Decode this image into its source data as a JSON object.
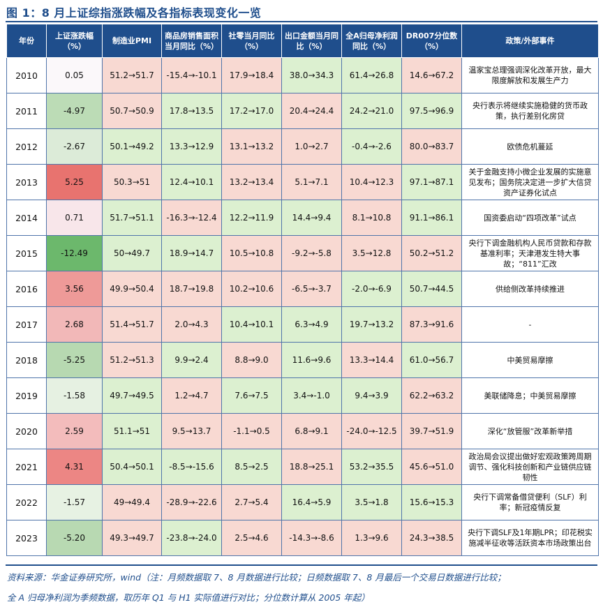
{
  "title": "图 1：8 月上证综指涨跌幅及各指标表现变化一览",
  "columns": [
    "年份",
    "上证涨跌幅（%）",
    "制造业PMI",
    "商品房销售面积当月同比（%）",
    "社零当月同比（%）",
    "出口金额当月同比（%）",
    "全A归母净利润同比（%）",
    "DR007分位数（%）",
    "政策/外部事件"
  ],
  "colors": {
    "header": "#1f4e8c",
    "pink": "#f8d9d2",
    "green": "#dcf0d0",
    "white": "#ffffff"
  },
  "rows": [
    {
      "year": "2010",
      "change": "0.05",
      "change_bg": "#fbf8fa",
      "pmi": "51.2→51.7",
      "pmi_bg": "pink",
      "house": "-15.4→-10.1",
      "house_bg": "pink",
      "retail": "17.9→18.4",
      "retail_bg": "pink",
      "export": "38.0→34.3",
      "export_bg": "green",
      "profit": "61.4→26.8",
      "profit_bg": "green",
      "dr007": "14.6→67.2",
      "dr007_bg": "pink",
      "event": "温家宝总理强调深化改革开放，最大限度解放和发展生产力"
    },
    {
      "year": "2011",
      "change": "-4.97",
      "change_bg": "#bcdcb6",
      "pmi": "50.7→50.9",
      "pmi_bg": "pink",
      "house": "17.8→13.5",
      "house_bg": "green",
      "retail": "17.2→17.0",
      "retail_bg": "green",
      "export": "20.4→24.4",
      "export_bg": "pink",
      "profit": "24.2→21.0",
      "profit_bg": "green",
      "dr007": "97.5→96.9",
      "dr007_bg": "green",
      "event": "央行表示将继续实施稳健的货币政策，执行差别化房贷"
    },
    {
      "year": "2012",
      "change": "-2.67",
      "change_bg": "#dcebd8",
      "pmi": "50.1→49.2",
      "pmi_bg": "green",
      "house": "13.3→12.9",
      "house_bg": "green",
      "retail": "13.1→13.2",
      "retail_bg": "pink",
      "export": "1.0→2.7",
      "export_bg": "pink",
      "profit": "-0.4→-2.6",
      "profit_bg": "green",
      "dr007": "80.0→83.7",
      "dr007_bg": "pink",
      "event": "欧债危机蔓延"
    },
    {
      "year": "2013",
      "change": "5.25",
      "change_bg": "#e8736f",
      "pmi": "50.3→51",
      "pmi_bg": "pink",
      "house": "12.4→10.1",
      "house_bg": "green",
      "retail": "13.2→13.4",
      "retail_bg": "pink",
      "export": "5.1→7.1",
      "export_bg": "pink",
      "profit": "10.4→12.3",
      "profit_bg": "pink",
      "dr007": "97.1→87.1",
      "dr007_bg": "green",
      "event": "关于金融支持小微企业发展的实施意见发布；国务院决定进一步扩大信贷资产证券化试点"
    },
    {
      "year": "2014",
      "change": "0.71",
      "change_bg": "#f8e6ea",
      "pmi": "51.7→51.1",
      "pmi_bg": "green",
      "house": "-16.3→-12.4",
      "house_bg": "pink",
      "retail": "12.2→11.9",
      "retail_bg": "green",
      "export": "14.4→9.4",
      "export_bg": "green",
      "profit": "8.1→10.8",
      "profit_bg": "pink",
      "dr007": "91.1→86.1",
      "dr007_bg": "green",
      "event": "国资委启动“四项改革”试点"
    },
    {
      "year": "2015",
      "change": "-12.49",
      "change_bg": "#6cb86c",
      "pmi": "50→49.7",
      "pmi_bg": "green",
      "house": "18.9→14.7",
      "house_bg": "green",
      "retail": "10.5→10.8",
      "retail_bg": "pink",
      "export": "-9.2→-5.8",
      "export_bg": "pink",
      "profit": "3.5→12.8",
      "profit_bg": "pink",
      "dr007": "50.2→51.2",
      "dr007_bg": "pink",
      "event": "央行下调金融机构人民币贷款和存款基准利率；天津港发生特大事故；“811”汇改"
    },
    {
      "year": "2016",
      "change": "3.56",
      "change_bg": "#ee9a98",
      "pmi": "49.9→50.4",
      "pmi_bg": "pink",
      "house": "18.7→19.8",
      "house_bg": "pink",
      "retail": "10.2→10.6",
      "retail_bg": "pink",
      "export": "-6.5→-3.7",
      "export_bg": "pink",
      "profit": "-2.0→-6.9",
      "profit_bg": "green",
      "dr007": "50.7→44.5",
      "dr007_bg": "green",
      "event": "供给侧改革持续推进"
    },
    {
      "year": "2017",
      "change": "2.68",
      "change_bg": "#f2b8b8",
      "pmi": "51.4→51.7",
      "pmi_bg": "pink",
      "house": "2.0→4.3",
      "house_bg": "pink",
      "retail": "10.4→10.1",
      "retail_bg": "green",
      "export": "6.3→4.9",
      "export_bg": "green",
      "profit": "19.7→13.2",
      "profit_bg": "green",
      "dr007": "87.3→91.6",
      "dr007_bg": "pink",
      "event": "-"
    },
    {
      "year": "2018",
      "change": "-5.25",
      "change_bg": "#b7d9b1",
      "pmi": "51.2→51.3",
      "pmi_bg": "pink",
      "house": "9.9→2.4",
      "house_bg": "green",
      "retail": "8.8→9.0",
      "retail_bg": "pink",
      "export": "11.6→9.6",
      "export_bg": "green",
      "profit": "13.3→14.4",
      "profit_bg": "pink",
      "dr007": "61.0→56.7",
      "dr007_bg": "green",
      "event": "中美贸易摩擦"
    },
    {
      "year": "2019",
      "change": "-1.58",
      "change_bg": "#e6f1e2",
      "pmi": "49.7→49.5",
      "pmi_bg": "green",
      "house": "1.2→4.7",
      "house_bg": "pink",
      "retail": "7.6→7.5",
      "retail_bg": "green",
      "export": "3.4→-1.0",
      "export_bg": "green",
      "profit": "9.4→3.9",
      "profit_bg": "green",
      "dr007": "62.2→63.2",
      "dr007_bg": "pink",
      "event": "美联储降息；中美贸易摩擦"
    },
    {
      "year": "2020",
      "change": "2.59",
      "change_bg": "#f3bcbc",
      "pmi": "51.1→51",
      "pmi_bg": "green",
      "house": "9.5→13.7",
      "house_bg": "pink",
      "retail": "-1.1→0.5",
      "retail_bg": "pink",
      "export": "6.8→9.1",
      "export_bg": "pink",
      "profit": "-24.0→-12.5",
      "profit_bg": "pink",
      "dr007": "39.7→51.9",
      "dr007_bg": "pink",
      "event": "深化“放管服”改革新举措"
    },
    {
      "year": "2021",
      "change": "4.31",
      "change_bg": "#ec8684",
      "pmi": "50.4→50.1",
      "pmi_bg": "green",
      "house": "-8.5→-15.6",
      "house_bg": "green",
      "retail": "8.5→2.5",
      "retail_bg": "green",
      "export": "18.8→25.1",
      "export_bg": "pink",
      "profit": "53.2→35.5",
      "profit_bg": "green",
      "dr007": "45.6→51.0",
      "dr007_bg": "pink",
      "event": "政治局会议提出做好宏观政策跨周期调节、强化科技创新和产业链供应链韧性"
    },
    {
      "year": "2022",
      "change": "-1.57",
      "change_bg": "#e7f2e3",
      "pmi": "49→49.4",
      "pmi_bg": "pink",
      "house": "-28.9→-22.6",
      "house_bg": "pink",
      "retail": "2.7→5.4",
      "retail_bg": "pink",
      "export": "16.4→5.9",
      "export_bg": "green",
      "profit": "3.5→1.8",
      "profit_bg": "green",
      "dr007": "15.6→15.3",
      "dr007_bg": "green",
      "event": "央行下调常备借贷便利（SLF）利率；新冠疫情反复"
    },
    {
      "year": "2023",
      "change": "-5.20",
      "change_bg": "#b8d9b2",
      "pmi": "49.3→49.7",
      "pmi_bg": "pink",
      "house": "-23.8→-24.0",
      "house_bg": "green",
      "retail": "2.5→4.6",
      "retail_bg": "pink",
      "export": "-14.3→-8.6",
      "export_bg": "pink",
      "profit": "1.3→9.6",
      "profit_bg": "pink",
      "dr007": "24.3→38.5",
      "dr007_bg": "pink",
      "event": "央行下调SLF及1年期LPR；印花税实施减半征收等活跃资本市场政策出台"
    }
  ],
  "source_line1": "资料来源：华金证券研究所，wind（注：月频数据取 7、8 月数据进行比较；日频数据取 7、8 月最后一个交易日数据进行比较；",
  "source_line2": "全 A 归母净利润为季频数据，取历年 Q1 与 H1 实际值进行对比；分位数计算从 2005 年起）"
}
